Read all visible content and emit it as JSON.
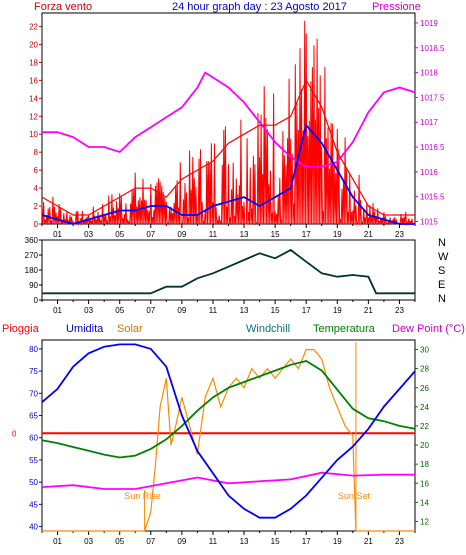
{
  "header": {
    "left_label": "Forza vento",
    "title": "24 hour graph day : 23 Agosto 2017",
    "right_label": "Pressione"
  },
  "colors": {
    "wind": "#ff0000",
    "gust": "#ff0000",
    "wind_avg": "#0000ff",
    "pressure": "#ff00ff",
    "winddir": "#003333",
    "humidity": "#0000ff",
    "solar": "#ff8800",
    "windchill": "#008080",
    "temperature": "#008000",
    "rain": "#ff0000",
    "dewpoint": "#ff00ff",
    "frame": "#000000",
    "axis_left": "#cc0000",
    "axis_right": "#cc00cc",
    "axis_blue": "#0000cc",
    "axis_green": "#006600",
    "background": "#ffffff"
  },
  "chart_data": [
    {
      "type": "line",
      "panel": "wind_pressure",
      "x_ticks": [
        "01",
        "03",
        "05",
        "07",
        "09",
        "11",
        "13",
        "15",
        "17",
        "19",
        "21",
        "23"
      ],
      "y_left_ticks": [
        "0",
        "2",
        "4",
        "6",
        "8",
        "10",
        "12",
        "14",
        "16",
        "18",
        "20",
        "22"
      ],
      "y_right_ticks": [
        "1015",
        "1015.5",
        "1016",
        "1016.5",
        "1017",
        "1017.5",
        "1018",
        "1018.5",
        "1019"
      ],
      "ylim_left": [
        0,
        23.5
      ],
      "ylim_right": [
        1014.95,
        1019.2
      ],
      "series": [
        {
          "key": "pressure",
          "axis": "right",
          "points": [
            [
              0,
              1016.8
            ],
            [
              1,
              1016.8
            ],
            [
              2,
              1016.7
            ],
            [
              3,
              1016.5
            ],
            [
              4,
              1016.5
            ],
            [
              5,
              1016.4
            ],
            [
              6,
              1016.7
            ],
            [
              7,
              1016.9
            ],
            [
              8,
              1017.1
            ],
            [
              9,
              1017.3
            ],
            [
              10,
              1017.7
            ],
            [
              10.5,
              1018.0
            ],
            [
              11,
              1017.9
            ],
            [
              12,
              1017.7
            ],
            [
              13,
              1017.4
            ],
            [
              14,
              1017.0
            ],
            [
              15,
              1016.6
            ],
            [
              16,
              1016.3
            ],
            [
              17,
              1016.1
            ],
            [
              18,
              1016.1
            ],
            [
              19,
              1016.2
            ],
            [
              20,
              1016.6
            ],
            [
              21,
              1017.2
            ],
            [
              22,
              1017.6
            ],
            [
              23,
              1017.7
            ],
            [
              24,
              1017.6
            ]
          ]
        },
        {
          "key": "wind",
          "axis": "left",
          "points": [
            [
              0,
              3
            ],
            [
              1,
              2
            ],
            [
              2,
              1
            ],
            [
              3,
              1
            ],
            [
              4,
              2
            ],
            [
              5,
              3
            ],
            [
              6,
              4
            ],
            [
              7,
              4
            ],
            [
              8,
              3
            ],
            [
              9,
              5
            ],
            [
              10,
              6
            ],
            [
              11,
              7
            ],
            [
              12,
              9
            ],
            [
              13,
              10
            ],
            [
              14,
              11
            ],
            [
              15,
              11
            ],
            [
              16,
              12
            ],
            [
              17,
              16
            ],
            [
              18,
              13
            ],
            [
              19,
              8
            ],
            [
              20,
              5
            ],
            [
              21,
              2
            ],
            [
              22,
              1
            ],
            [
              23,
              1
            ],
            [
              24,
              1
            ]
          ]
        },
        {
          "key": "wind_avg",
          "axis": "left",
          "points": [
            [
              0,
              1
            ],
            [
              1,
              0.5
            ],
            [
              2,
              0
            ],
            [
              3,
              0.5
            ],
            [
              4,
              1
            ],
            [
              5,
              1.5
            ],
            [
              6,
              1.5
            ],
            [
              7,
              2
            ],
            [
              8,
              2
            ],
            [
              9,
              1
            ],
            [
              10,
              1
            ],
            [
              11,
              2
            ],
            [
              12,
              2.5
            ],
            [
              13,
              3
            ],
            [
              14,
              2
            ],
            [
              15,
              3
            ],
            [
              16,
              4
            ],
            [
              17,
              11
            ],
            [
              18,
              9
            ],
            [
              19,
              6
            ],
            [
              20,
              3
            ],
            [
              21,
              1
            ],
            [
              22,
              0.5
            ],
            [
              23,
              0
            ],
            [
              24,
              0
            ]
          ]
        }
      ]
    },
    {
      "type": "line",
      "panel": "wind_direction",
      "x_ticks": [
        "01",
        "03",
        "05",
        "07",
        "09",
        "11",
        "13",
        "15",
        "17",
        "19",
        "21",
        "23"
      ],
      "y_ticks": [
        "0",
        "90",
        "180",
        "270",
        "360"
      ],
      "compass": [
        "N",
        "W",
        "S",
        "E",
        "N"
      ],
      "ylim": [
        0,
        360
      ],
      "series": [
        {
          "key": "winddir",
          "points": [
            [
              0,
              40
            ],
            [
              7,
              40
            ],
            [
              8,
              80
            ],
            [
              9,
              80
            ],
            [
              10,
              130
            ],
            [
              11,
              160
            ],
            [
              12,
              200
            ],
            [
              13,
              240
            ],
            [
              14,
              280
            ],
            [
              15,
              250
            ],
            [
              16,
              300
            ],
            [
              17,
              230
            ],
            [
              18,
              160
            ],
            [
              19,
              140
            ],
            [
              20,
              150
            ],
            [
              21,
              140
            ],
            [
              21.5,
              40
            ],
            [
              24,
              40
            ]
          ]
        }
      ]
    },
    {
      "type": "line",
      "panel": "weather",
      "x_ticks": [
        "01",
        "03",
        "05",
        "07",
        "09",
        "11",
        "13",
        "15",
        "17",
        "19",
        "21",
        "23"
      ],
      "y_left_ticks": [
        "40",
        "45",
        "50",
        "55",
        "60",
        "65",
        "70",
        "75",
        "80"
      ],
      "y_right_ticks": [
        "12",
        "14",
        "16",
        "18",
        "20",
        "22",
        "24",
        "26",
        "28",
        "30"
      ],
      "ylim_left": [
        39,
        82
      ],
      "ylim_right": [
        11,
        31
      ],
      "rain_value": "0",
      "annotations": [
        "Sun Rise",
        "Sun Set"
      ],
      "sunrise_hour": 6.6,
      "sunset_hour": 20.2,
      "legend": [
        "Pioggia",
        "Umidita",
        "Solar",
        "Windchill",
        "Temperatura",
        "Dew Point (°C)"
      ],
      "series": [
        {
          "key": "humidity",
          "axis": "left",
          "points": [
            [
              0,
              68
            ],
            [
              1,
              71
            ],
            [
              2,
              76
            ],
            [
              3,
              79
            ],
            [
              4,
              80.5
            ],
            [
              5,
              81
            ],
            [
              6,
              81
            ],
            [
              7,
              80
            ],
            [
              8,
              76
            ],
            [
              9,
              65
            ],
            [
              10,
              57
            ],
            [
              11,
              52
            ],
            [
              12,
              47
            ],
            [
              13,
              44
            ],
            [
              14,
              42
            ],
            [
              15,
              42
            ],
            [
              16,
              44
            ],
            [
              17,
              47
            ],
            [
              18,
              51
            ],
            [
              19,
              55
            ],
            [
              20,
              58
            ],
            [
              21,
              62
            ],
            [
              22,
              67
            ],
            [
              23,
              71
            ],
            [
              24,
              75
            ]
          ]
        },
        {
          "key": "temperature",
          "axis": "right",
          "points": [
            [
              0,
              20.5
            ],
            [
              1,
              20.2
            ],
            [
              2,
              19.8
            ],
            [
              3,
              19.4
            ],
            [
              4,
              19.0
            ],
            [
              5,
              18.7
            ],
            [
              6,
              18.9
            ],
            [
              7,
              19.6
            ],
            [
              8,
              20.6
            ],
            [
              9,
              22.0
            ],
            [
              10,
              23.6
            ],
            [
              11,
              25.0
            ],
            [
              12,
              26.0
            ],
            [
              13,
              26.6
            ],
            [
              14,
              27.2
            ],
            [
              15,
              27.8
            ],
            [
              16,
              28.4
            ],
            [
              17,
              28.8
            ],
            [
              18,
              27.8
            ],
            [
              19,
              25.8
            ],
            [
              20,
              23.8
            ],
            [
              21,
              22.8
            ],
            [
              22,
              22.5
            ],
            [
              23,
              22.0
            ],
            [
              24,
              21.7
            ]
          ]
        },
        {
          "key": "dewpoint",
          "axis": "right",
          "points": [
            [
              0,
              15.6
            ],
            [
              2,
              15.8
            ],
            [
              4,
              15.4
            ],
            [
              6,
              15.4
            ],
            [
              8,
              16.0
            ],
            [
              10,
              16.6
            ],
            [
              12,
              16.0
            ],
            [
              14,
              16.2
            ],
            [
              16,
              16.4
            ],
            [
              18,
              17.1
            ],
            [
              20,
              16.8
            ],
            [
              22,
              16.9
            ],
            [
              24,
              16.9
            ]
          ]
        },
        {
          "key": "solar",
          "axis": "right",
          "points": [
            [
              0,
              11
            ],
            [
              6.6,
              11
            ],
            [
              7.0,
              13
            ],
            [
              7.3,
              18
            ],
            [
              7.6,
              24
            ],
            [
              8,
              27
            ],
            [
              8.3,
              20
            ],
            [
              8.6,
              22
            ],
            [
              9,
              25
            ],
            [
              9.5,
              22
            ],
            [
              10,
              19
            ],
            [
              10.5,
              25
            ],
            [
              11,
              27
            ],
            [
              11.5,
              24
            ],
            [
              12,
              26
            ],
            [
              12.5,
              27
            ],
            [
              13,
              26
            ],
            [
              13.5,
              28
            ],
            [
              14,
              27
            ],
            [
              14.5,
              28
            ],
            [
              15,
              27
            ],
            [
              15.5,
              28
            ],
            [
              16,
              29
            ],
            [
              16.5,
              28
            ],
            [
              17,
              30
            ],
            [
              17.5,
              30
            ],
            [
              18,
              29
            ],
            [
              18.5,
              26
            ],
            [
              19,
              24
            ],
            [
              19.5,
              22
            ],
            [
              20,
              21
            ],
            [
              20.2,
              11
            ],
            [
              24,
              11
            ]
          ]
        }
      ]
    }
  ]
}
